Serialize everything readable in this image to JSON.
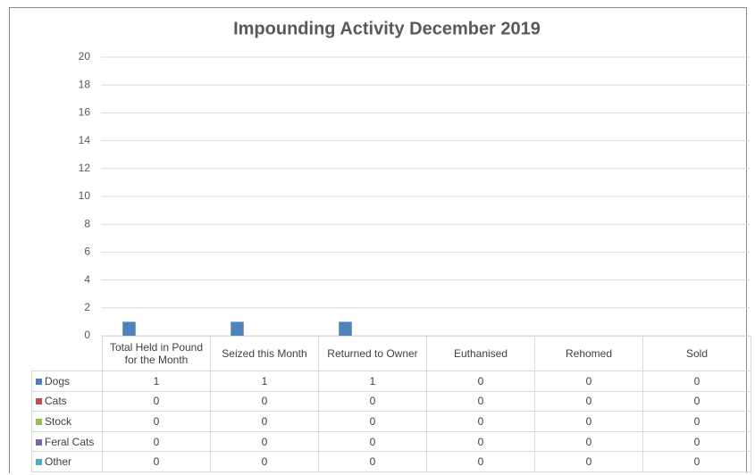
{
  "chart_data": {
    "type": "bar",
    "title": "Impounding Activity December 2019",
    "categories": [
      "Total Held in Pound for the Month",
      "Seized this Month",
      "Returned to Owner",
      "Euthanised",
      "Rehomed",
      "Sold"
    ],
    "series": [
      {
        "name": "Dogs",
        "color": "#4f81bd",
        "values": [
          1,
          1,
          1,
          0,
          0,
          0
        ]
      },
      {
        "name": "Cats",
        "color": "#c0504d",
        "values": [
          0,
          0,
          0,
          0,
          0,
          0
        ]
      },
      {
        "name": "Stock",
        "color": "#9bbb59",
        "values": [
          0,
          0,
          0,
          0,
          0,
          0
        ]
      },
      {
        "name": "Feral Cats",
        "color": "#8064a2",
        "values": [
          0,
          0,
          0,
          0,
          0,
          0
        ]
      },
      {
        "name": "Other",
        "color": "#4bacc6",
        "values": [
          0,
          0,
          0,
          0,
          0,
          0
        ]
      }
    ],
    "ylim": [
      0,
      20
    ],
    "yticks": [
      0,
      2,
      4,
      6,
      8,
      10,
      12,
      14,
      16,
      18,
      20
    ],
    "grid": true
  }
}
